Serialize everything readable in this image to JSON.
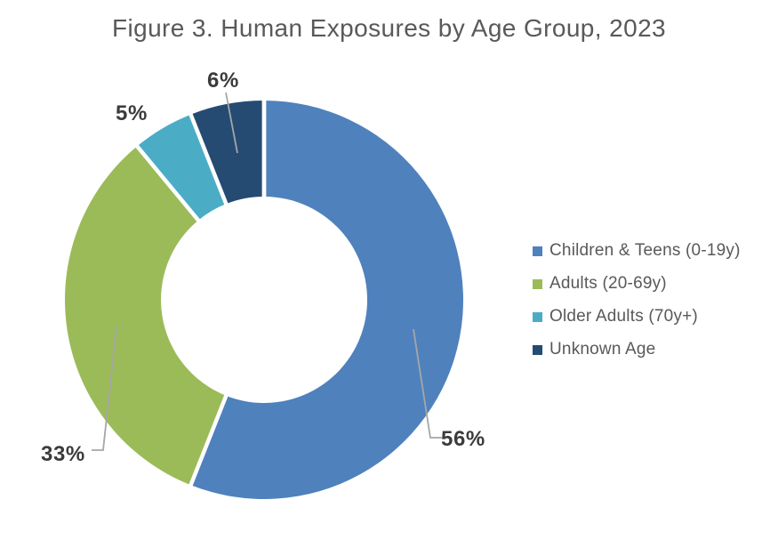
{
  "figure": {
    "title": "Figure 3. Human Exposures by Age Group, 2023"
  },
  "chart_data": {
    "type": "pie",
    "subtype": "donut",
    "title": "Figure 3. Human Exposures by Age Group, 2023",
    "unit": "%",
    "start_angle_deg": 0,
    "direction": "clockwise",
    "inner_radius_ratio": 0.52,
    "legend_position": "right",
    "slices": [
      {
        "name": "Children & Teens (0-19y)",
        "value": 56,
        "label": "56%",
        "color": "#4F81BD"
      },
      {
        "name": "Adults (20-69y)",
        "value": 33,
        "label": "33%",
        "color": "#9BBB59"
      },
      {
        "name": "Older Adults (70y+)",
        "value": 5,
        "label": "5%",
        "color": "#4BACC6"
      },
      {
        "name": "Unknown Age",
        "value": 6,
        "label": "6%",
        "color": "#264B72"
      }
    ],
    "colors": {
      "title_text": "#595959",
      "legend_text": "#595959",
      "data_label_text": "#3B3B3B",
      "leader_line": "#A6A6A6",
      "background": "#FFFFFF",
      "slice_separator": "#FFFFFF"
    }
  }
}
